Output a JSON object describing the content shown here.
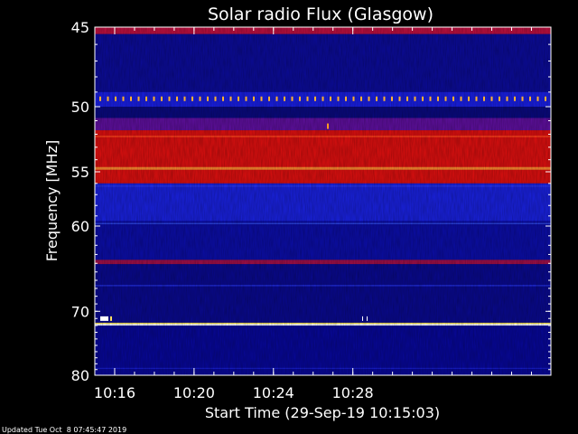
{
  "chart_data": {
    "type": "heatmap",
    "title": "Solar radio Flux (Glasgow)",
    "xlabel": "Start Time (29-Sep-19 10:15:03)",
    "ylabel": "Frequency [MHz]",
    "footer": "Updated Tue Oct  8 07:45:47 2019",
    "x_range_minutes": [
      10.25,
      10.633
    ],
    "x_ticks": [
      "10:16",
      "10:20",
      "10:24",
      "10:28"
    ],
    "y_ticks": [
      "45",
      "50",
      "55",
      "60",
      "70",
      "80"
    ],
    "y_scale": "reciprocal",
    "y_range_mhz": [
      45,
      80
    ],
    "colormap": [
      "#0b0b66",
      "#1a1adc",
      "#7a1a8a",
      "#ff1a00",
      "#ffee33",
      "#ffffff"
    ],
    "bands": [
      {
        "from_mhz": 45.0,
        "to_mhz": 45.4,
        "color": "#c01040"
      },
      {
        "from_mhz": 45.4,
        "to_mhz": 49.0,
        "color": "#0c0c9a"
      },
      {
        "from_mhz": 49.0,
        "to_mhz": 50.0,
        "color": "#1a20e6"
      },
      {
        "from_mhz": 50.8,
        "to_mhz": 51.7,
        "color": "#6010a0"
      },
      {
        "from_mhz": 51.7,
        "to_mhz": 56.0,
        "color": "#e01010"
      },
      {
        "from_mhz": 56.0,
        "to_mhz": 59.5,
        "color": "#1a22e0"
      },
      {
        "from_mhz": 59.5,
        "to_mhz": 63.6,
        "color": "#0c0ea8"
      },
      {
        "from_mhz": 63.6,
        "to_mhz": 64.1,
        "color": "#a0104a"
      },
      {
        "from_mhz": 64.1,
        "to_mhz": 71.6,
        "color": "#0a0a90"
      },
      {
        "from_mhz": 71.6,
        "to_mhz": 72.0,
        "color": "#ffe84a"
      },
      {
        "from_mhz": 72.0,
        "to_mhz": 80.0,
        "color": "#08089a"
      }
    ],
    "grid": false,
    "legend": "none"
  }
}
